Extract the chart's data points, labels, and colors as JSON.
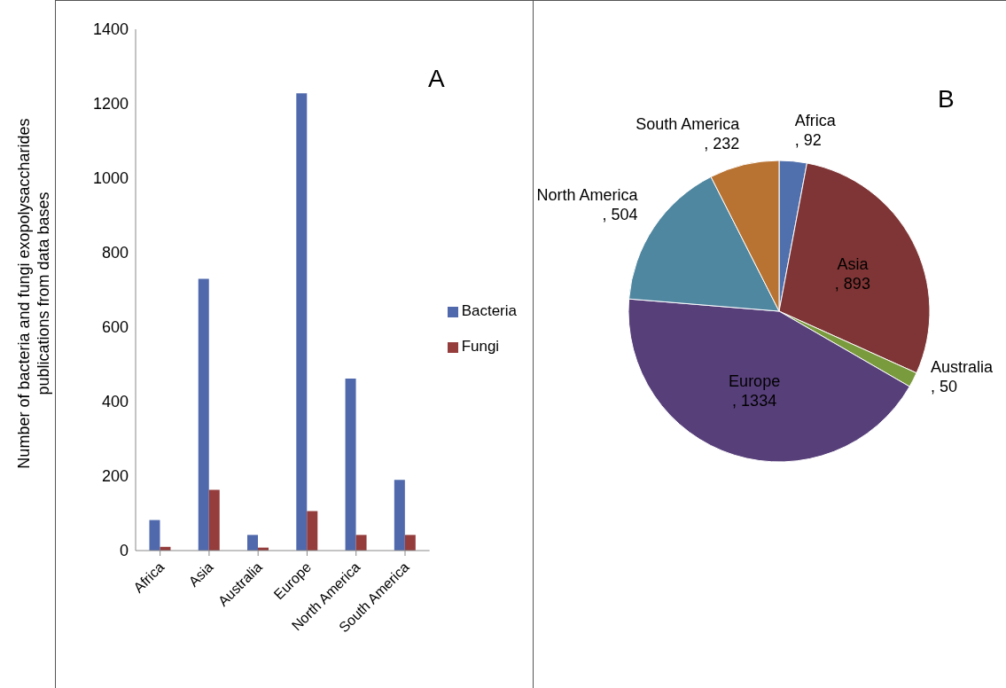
{
  "chart_data": [
    {
      "type": "bar",
      "title": "A",
      "ylabel": "Number of bacteria and fungi exopolysaccharides publications from data bases",
      "categories": [
        "Africa",
        "Asia",
        "Australia",
        "Europe",
        "North America",
        "South America"
      ],
      "series": [
        {
          "name": "Bacteria",
          "color": "#5069ad",
          "values": [
            82,
            730,
            42,
            1228,
            462,
            190
          ]
        },
        {
          "name": "Fungi",
          "color": "#953c3c",
          "values": [
            10,
            163,
            8,
            106,
            42,
            42
          ]
        }
      ],
      "ylim": [
        0,
        1400
      ],
      "yticks": [
        0,
        200,
        400,
        600,
        800,
        1000,
        1200,
        1400
      ],
      "grid": false,
      "legend": "right"
    },
    {
      "type": "pie",
      "title": "B",
      "categories": [
        "Africa",
        "Asia",
        "Australia",
        "Europe",
        "North America",
        "South America"
      ],
      "values": [
        92,
        893,
        50,
        1334,
        504,
        232
      ],
      "colors": [
        "#4f6fad",
        "#7f3535",
        "#7a9a3e",
        "#573f7a",
        "#4f86a0",
        "#b87333"
      ],
      "value_labels": [
        ", 92",
        ", 893",
        ", 50",
        ", 1334",
        ", 504",
        ", 232"
      ]
    }
  ]
}
